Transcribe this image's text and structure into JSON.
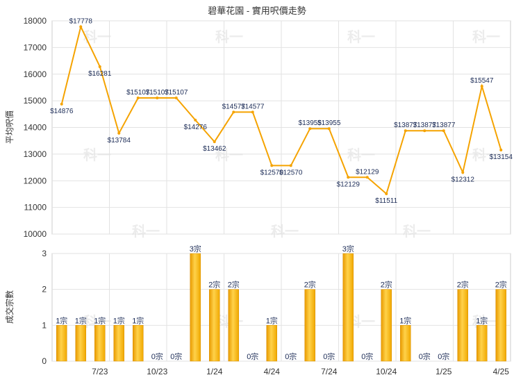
{
  "chart_data": [
    {
      "type": "line",
      "title": "碧華花園 - 實用呎價走勢",
      "ylabel": "平均呎價",
      "ylim": [
        10000,
        18000
      ],
      "yticks": [
        10000,
        11000,
        12000,
        13000,
        14000,
        15000,
        16000,
        17000,
        18000
      ],
      "grid": true,
      "color": "#f5a300",
      "series": [
        {
          "values": [
            14876,
            17778,
            16281,
            13784,
            15107,
            15107,
            15107,
            14276,
            13462,
            14577,
            14577,
            12570,
            12570,
            13955,
            13955,
            12129,
            12129,
            11511,
            13877,
            13877,
            13877,
            12312,
            15547,
            13154
          ],
          "labels": [
            "$14876",
            "$17778",
            "$16281",
            "$13784",
            "$15107",
            "$15107",
            "$15107",
            "$14276",
            "$13462",
            "$14577",
            "$14577",
            "$12570",
            "$12570",
            "$13955",
            "$13955",
            "$12129",
            "$12129",
            "$11511",
            "$13877",
            "$13877",
            "$13877",
            "$12312",
            "$15547",
            "$13154"
          ]
        }
      ],
      "watermark": "科一"
    },
    {
      "type": "bar",
      "ylabel": "成交宗數",
      "ylim": [
        0,
        3
      ],
      "yticks": [
        0,
        1,
        2,
        3
      ],
      "grid": true,
      "color": "#f5a300",
      "x_tick_labels": [
        "7/23",
        "10/23",
        "1/24",
        "4/24",
        "7/24",
        "10/24",
        "1/25",
        "4/25"
      ],
      "values": [
        1,
        1,
        1,
        1,
        1,
        0,
        0,
        3,
        2,
        2,
        0,
        1,
        0,
        2,
        0,
        3,
        0,
        2,
        1,
        0,
        0,
        2,
        1,
        2
      ],
      "labels": [
        "1宗",
        "1宗",
        "1宗",
        "1宗",
        "1宗",
        "0宗",
        "0宗",
        "3宗",
        "2宗",
        "2宗",
        "0宗",
        "1宗",
        "0宗",
        "2宗",
        "0宗",
        "3宗",
        "0宗",
        "2宗",
        "1宗",
        "0宗",
        "0宗",
        "2宗",
        "1宗",
        "2宗"
      ],
      "watermark": "科一"
    }
  ]
}
